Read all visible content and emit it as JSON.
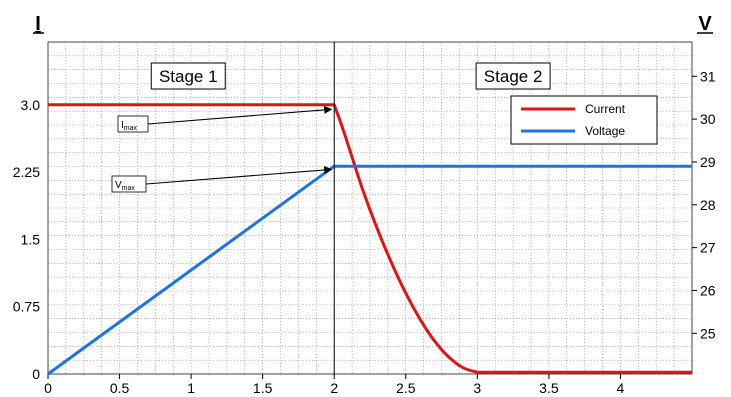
{
  "chart_data": {
    "type": "line",
    "x_ticks": [
      "0",
      "0.5",
      "1",
      "1.5",
      "2",
      "2.5",
      "3",
      "3.5",
      "4"
    ],
    "x_values": [
      0,
      0.5,
      1,
      1.5,
      2,
      2.5,
      3,
      3.5,
      4
    ],
    "xlim": [
      0,
      4.5
    ],
    "left_axis": {
      "label": "I",
      "ylim": [
        0,
        3.7
      ],
      "ticks": [
        "0",
        "0.75",
        "1.5",
        "2.25",
        "3.0"
      ],
      "tick_values": [
        0,
        0.75,
        1.5,
        2.25,
        3.0
      ]
    },
    "right_axis": {
      "label": "V",
      "ylim": [
        24.05,
        31.8
      ],
      "ticks": [
        "25",
        "26",
        "27",
        "28",
        "29",
        "30",
        "31"
      ],
      "tick_values": [
        25,
        26,
        27,
        28,
        29,
        30,
        31
      ]
    },
    "grid": true,
    "legend_position": "top-right",
    "series": [
      {
        "name": "Current",
        "axis": "left",
        "color": "#e01414",
        "x": [
          0,
          2.0,
          2.05,
          2.1,
          2.2,
          2.3,
          2.4,
          2.5,
          2.6,
          2.7,
          2.8,
          2.9,
          3.0,
          4.5
        ],
        "y": [
          3.0,
          3.0,
          2.78,
          2.54,
          2.05,
          1.62,
          1.24,
          0.9,
          0.61,
          0.37,
          0.19,
          0.07,
          0.02,
          0.02
        ]
      },
      {
        "name": "Voltage",
        "axis": "right",
        "color": "#1a73e8",
        "x": [
          0,
          2.0,
          4.5
        ],
        "y": [
          24.05,
          28.9,
          28.9
        ]
      }
    ],
    "stages": [
      {
        "label": "Stage 1",
        "x": 0.98
      },
      {
        "label": "Stage 2",
        "x": 3.25
      }
    ],
    "divider_x": 2.0,
    "annotations": [
      {
        "main": "I",
        "sub": "max",
        "point": {
          "x": 2.0,
          "y": 2.95,
          "axis": "left"
        }
      },
      {
        "main": "V",
        "sub": "max",
        "point": {
          "x": 2.0,
          "y": 2.28,
          "axis": "left"
        }
      }
    ]
  }
}
